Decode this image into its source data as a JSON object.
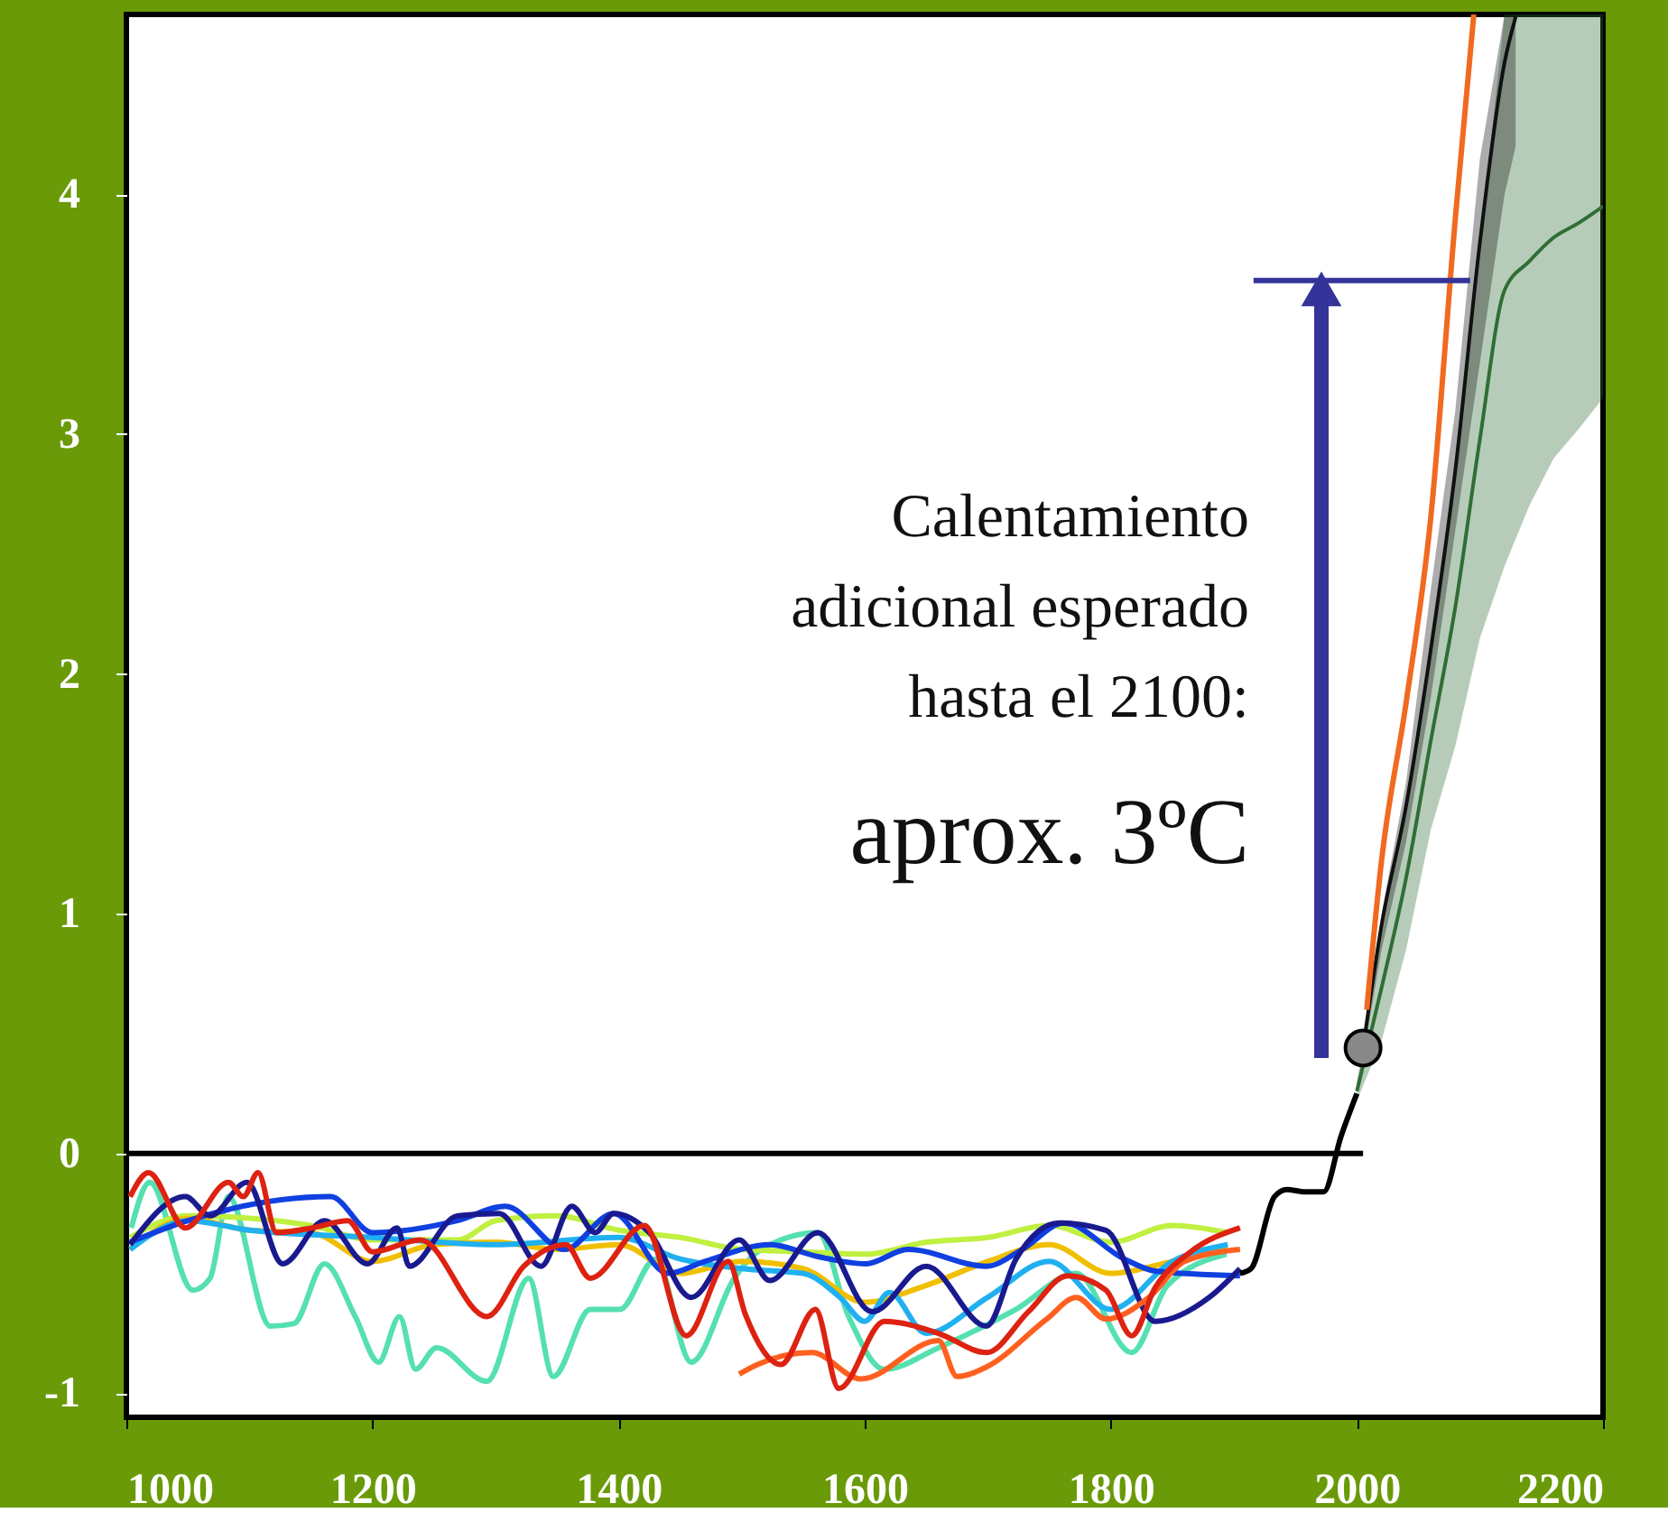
{
  "chart_data": {
    "type": "line",
    "xlim": [
      1000,
      2200
    ],
    "xticks": [
      1000,
      1200,
      1400,
      1600,
      1800,
      2000,
      2200
    ],
    "ylim": [
      -1.1,
      4.75
    ],
    "yticks": [
      -1,
      0,
      1,
      2,
      3,
      4
    ],
    "grid": false,
    "line_style": "solid",
    "marker": "none",
    "annotations": [
      "Calentamiento\nadicional esperado\nhasta el 2100:",
      "aprox. 3ºC"
    ],
    "series": [
      {
        "color": "#2f6e35",
        "x": [
          2000,
          2020,
          2040,
          2060,
          2080,
          2100,
          2120,
          2140,
          2160,
          2180,
          2200
        ],
        "values": [
          0.26,
          0.69,
          1.15,
          1.72,
          2.28,
          2.98,
          3.6,
          3.72,
          3.82,
          3.88,
          3.95
        ],
        "lower": [
          0.22,
          0.47,
          0.85,
          1.35,
          1.7,
          2.15,
          2.45,
          2.7,
          2.9,
          3.02,
          3.15
        ],
        "upper": [
          0.3,
          0.9,
          1.45,
          2.1,
          2.85,
          3.8,
          4.75,
          4.75,
          4.75,
          4.75,
          4.75
        ]
      },
      {
        "color": "#111111",
        "x": [
          2005,
          2020,
          2040,
          2060,
          2080,
          2100,
          2120,
          2129
        ],
        "values": [
          0.44,
          0.95,
          1.45,
          2.1,
          2.85,
          3.8,
          4.55,
          4.74
        ],
        "lower": [
          0.4,
          0.85,
          1.3,
          1.9,
          2.6,
          3.3,
          4.0,
          4.2
        ],
        "upper": [
          0.47,
          1.0,
          1.55,
          2.35,
          3.1,
          4.15,
          4.75,
          4.75
        ]
      },
      {
        "color": "#f06a20",
        "x": [
          2008,
          2020,
          2040,
          2060,
          2080,
          2095
        ],
        "values": [
          0.6,
          1.22,
          1.88,
          2.65,
          3.9,
          4.75
        ]
      },
      {
        "color": "#333399",
        "x": [
          1916,
          2092
        ],
        "values": [
          3.64,
          3.64
        ]
      },
      {
        "color": "#000000",
        "x": [
          1000,
          2005
        ],
        "values": [
          0,
          0
        ]
      },
      {
        "color": "#55e0b0",
        "x": [
          1004,
          1019,
          1054,
          1068,
          1083,
          1117,
          1136,
          1161,
          1186,
          1205,
          1222,
          1235,
          1252,
          1293,
          1327,
          1347,
          1377,
          1401,
          1430,
          1459,
          1494,
          1513,
          1562,
          1587,
          1616,
          1660,
          1723,
          1772,
          1817,
          1846,
          1894
        ],
        "values": [
          -0.31,
          -0.12,
          -0.57,
          -0.52,
          -0.18,
          -0.72,
          -0.71,
          -0.46,
          -0.68,
          -0.87,
          -0.68,
          -0.9,
          -0.81,
          -0.95,
          -0.52,
          -0.93,
          -0.65,
          -0.65,
          -0.44,
          -0.87,
          -0.52,
          -0.41,
          -0.33,
          -0.68,
          -0.9,
          -0.81,
          -0.65,
          -0.5,
          -0.83,
          -0.55,
          -0.42
        ]
      },
      {
        "color": "#c0f040",
        "x": [
          1003,
          1050,
          1150,
          1200,
          1270,
          1300,
          1350,
          1400,
          1450,
          1500,
          1550,
          1600,
          1650,
          1700,
          1750,
          1800,
          1850,
          1895
        ],
        "values": [
          -0.35,
          -0.26,
          -0.3,
          -0.36,
          -0.36,
          -0.28,
          -0.26,
          -0.32,
          -0.35,
          -0.4,
          -0.41,
          -0.42,
          -0.37,
          -0.35,
          -0.3,
          -0.37,
          -0.3,
          -0.33
        ]
      },
      {
        "color": "#f0c000",
        "x": [
          1003,
          1050,
          1100,
          1150,
          1200,
          1250,
          1300,
          1350,
          1400,
          1450,
          1500,
          1550,
          1600,
          1650,
          1700,
          1750,
          1800,
          1850,
          1895
        ],
        "values": [
          -0.4,
          -0.27,
          -0.32,
          -0.33,
          -0.45,
          -0.38,
          -0.37,
          -0.4,
          -0.38,
          -0.5,
          -0.45,
          -0.48,
          -0.62,
          -0.55,
          -0.45,
          -0.38,
          -0.5,
          -0.45,
          -0.4
        ]
      },
      {
        "color": "#20b0f0",
        "x": [
          1003,
          1050,
          1100,
          1200,
          1300,
          1400,
          1450,
          1500,
          1550,
          1580,
          1600,
          1620,
          1650,
          1700,
          1750,
          1800,
          1850,
          1895
        ],
        "values": [
          -0.4,
          -0.28,
          -0.32,
          -0.35,
          -0.38,
          -0.35,
          -0.44,
          -0.48,
          -0.5,
          -0.6,
          -0.7,
          -0.58,
          -0.75,
          -0.6,
          -0.45,
          -0.65,
          -0.45,
          -0.38
        ]
      },
      {
        "color": "#1040e0",
        "x": [
          1003,
          1050,
          1166,
          1200,
          1269,
          1308,
          1356,
          1396,
          1440,
          1470,
          1523,
          1562,
          1601,
          1635,
          1699,
          1728,
          1762,
          1811,
          1836,
          1905
        ],
        "values": [
          -0.37,
          -0.28,
          -0.18,
          -0.33,
          -0.28,
          -0.22,
          -0.4,
          -0.25,
          -0.5,
          -0.45,
          -0.38,
          -0.43,
          -0.46,
          -0.4,
          -0.47,
          -0.4,
          -0.29,
          -0.44,
          -0.49,
          -0.51
        ]
      },
      {
        "color": "#1a1a90",
        "x": [
          1003,
          1048,
          1068,
          1098,
          1127,
          1161,
          1196,
          1220,
          1230,
          1269,
          1303,
          1337,
          1362,
          1381,
          1396,
          1425,
          1459,
          1498,
          1523,
          1562,
          1606,
          1650,
          1699,
          1723,
          1758,
          1796,
          1836,
          1880,
          1905
        ],
        "values": [
          -0.38,
          -0.18,
          -0.26,
          -0.12,
          -0.46,
          -0.28,
          -0.46,
          -0.31,
          -0.47,
          -0.26,
          -0.25,
          -0.47,
          -0.22,
          -0.33,
          -0.25,
          -0.33,
          -0.6,
          -0.36,
          -0.53,
          -0.33,
          -0.66,
          -0.47,
          -0.72,
          -0.44,
          -0.29,
          -0.32,
          -0.7,
          -0.6,
          -0.48
        ]
      },
      {
        "color": "#ff6020",
        "x": [
          1498,
          1513,
          1557,
          1597,
          1660,
          1675,
          1699,
          1748,
          1772,
          1796,
          1831,
          1860,
          1905
        ],
        "values": [
          -0.92,
          -0.88,
          -0.83,
          -0.94,
          -0.78,
          -0.93,
          -0.89,
          -0.69,
          -0.6,
          -0.69,
          -0.6,
          -0.45,
          -0.4
        ]
      },
      {
        "color": "#dd2211",
        "x": [
          1003,
          1018,
          1048,
          1083,
          1095,
          1107,
          1122,
          1151,
          1180,
          1200,
          1239,
          1293,
          1323,
          1357,
          1377,
          1421,
          1455,
          1489,
          1503,
          1532,
          1560,
          1579,
          1616,
          1660,
          1699,
          1733,
          1765,
          1796,
          1817,
          1836,
          1865,
          1905
        ],
        "values": [
          -0.18,
          -0.08,
          -0.31,
          -0.12,
          -0.18,
          -0.08,
          -0.33,
          -0.31,
          -0.28,
          -0.41,
          -0.36,
          -0.68,
          -0.47,
          -0.38,
          -0.52,
          -0.3,
          -0.76,
          -0.45,
          -0.67,
          -0.88,
          -0.65,
          -0.98,
          -0.7,
          -0.75,
          -0.83,
          -0.66,
          -0.51,
          -0.57,
          -0.76,
          -0.56,
          -0.41,
          -0.31
        ]
      },
      {
        "color": "#000000",
        "x": [
          1905,
          1914,
          1933,
          1943,
          1958,
          1973,
          1987,
          2000
        ],
        "values": [
          -0.5,
          -0.48,
          -0.18,
          -0.15,
          -0.16,
          -0.16,
          0.07,
          0.25
        ]
      },
      {
        "type": "scatter",
        "color": "#888888",
        "marker": "circle",
        "x": [
          2005
        ],
        "values": [
          0.44
        ]
      }
    ]
  }
}
